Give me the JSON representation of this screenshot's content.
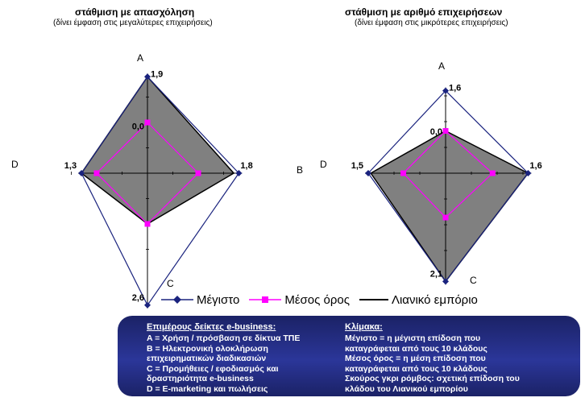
{
  "chart_data": [
    {
      "type": "radar",
      "title": "στάθμιση με απασχόληση",
      "subtitle": "(δίνει έμφαση στις μεγαλύτερες επιχειρήσεις)",
      "axes": [
        "A",
        "B",
        "C",
        "D"
      ],
      "series": [
        {
          "name": "Μέγιστο",
          "values": [
            1.9,
            1.8,
            2.6,
            1.3
          ]
        },
        {
          "name": "Μέσος όρος",
          "values": [
            1.0,
            1.0,
            1.0,
            1.0
          ]
        },
        {
          "name": "Λιανικό εμπόριο",
          "values": [
            1.9,
            1.7,
            1.0,
            1.3
          ]
        }
      ],
      "value_labels": {
        "top": "1,9",
        "right": "1,8",
        "bottom": "2,6",
        "left": "1,3",
        "center": "0,0"
      }
    },
    {
      "type": "radar",
      "title": "στάθμιση με αριθμό επιχειρήσεων",
      "subtitle": "(δίνει έμφαση στις μικρότερες επιχειρήσεις)",
      "axes": [
        "A",
        "B",
        "C",
        "D"
      ],
      "series": [
        {
          "name": "Μέγιστο",
          "values": [
            1.6,
            1.6,
            2.1,
            1.5
          ]
        },
        {
          "name": "Μέσος όρος",
          "values": [
            0.82,
            0.91,
            0.86,
            0.82
          ]
        },
        {
          "name": "Λιανικό εμπόριο",
          "values": [
            0.82,
            1.6,
            2.1,
            1.45
          ]
        }
      ],
      "value_labels": {
        "top": "1,6",
        "right": "1,6",
        "bottom": "2,1",
        "left": "1,5",
        "center": "0,0"
      }
    }
  ],
  "legend": {
    "max_label": "Μέγιστο",
    "avg_label": "Μέσος όρος",
    "retail_label": "Λιανικό εμπόριο"
  },
  "colors": {
    "max": "#1a237e",
    "avg": "#ff00ff",
    "retail_fill": "#808080",
    "retail_stroke": "#000000"
  },
  "info": {
    "left_title": "Επιμέρους δείκτες e-business:",
    "left_lines": [
      "A = Χρήση / πρόσβαση σε δίκτυα ΤΠΕ",
      "B = Ηλεκτρονική ολοκλήρωση",
      "επιχειρηματικών διαδικασιών",
      "C = Προμήθειες / εφοδιασμός και",
      "δραστηριότητα e-business",
      "D = E-marketing και πωλήσεις"
    ],
    "right_title": "Κλίμακα:",
    "right_lines": [
      "Μέγιστο = η μέγιστη επίδοση που",
      "καταγράφεται από τους 10 κλάδους",
      "Μέσος όρος = η μέση επίδοση που",
      "καταγράφεται από τους 10 κλάδους",
      "Σκούρος γκρι ρόμβος: σχετική επίδοση του",
      "κλάδου του Λιανικού εμπορίου"
    ]
  }
}
